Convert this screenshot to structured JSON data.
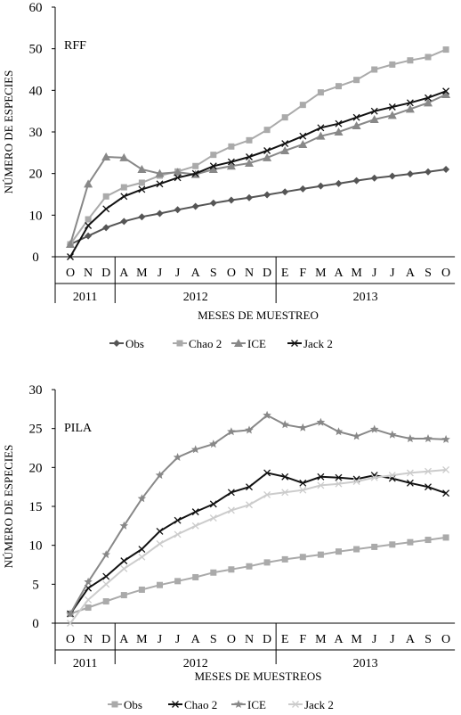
{
  "chart_data": [
    {
      "type": "line",
      "panel_label": "RFF",
      "ylabel": "NÚMERO DE ESPECIES",
      "xlabel": "MESES DE MUESTREO",
      "ylim": [
        0,
        60
      ],
      "yticks": [
        0,
        10,
        20,
        30,
        40,
        50,
        60
      ],
      "categories": [
        "O",
        "N",
        "D",
        "A",
        "M",
        "J",
        "J",
        "A",
        "S",
        "O",
        "N",
        "D",
        "E",
        "F",
        "M",
        "A",
        "M",
        "J",
        "J",
        "A",
        "S",
        "O"
      ],
      "years": [
        "2011",
        "2012",
        "2013"
      ],
      "grid": false,
      "legend_position": "bottom",
      "series": [
        {
          "name": "Obs",
          "color": "#555555",
          "marker": "diamond",
          "values": [
            3,
            5,
            7,
            8.5,
            9.6,
            10.4,
            11.3,
            12.1,
            12.9,
            13.6,
            14.2,
            14.9,
            15.6,
            16.3,
            17,
            17.6,
            18.3,
            18.9,
            19.4,
            19.9,
            20.4,
            21
          ]
        },
        {
          "name": "Chao 2",
          "color": "#aaaaaa",
          "marker": "square",
          "values": [
            3,
            9,
            14.5,
            16.7,
            17.8,
            19.5,
            20.5,
            21.8,
            24.5,
            26.5,
            28,
            30.5,
            33.5,
            36.5,
            39.5,
            41,
            42.5,
            45,
            46.2,
            47.2,
            48,
            49.8
          ]
        },
        {
          "name": "ICE",
          "color": "#888888",
          "marker": "triangle",
          "values": [
            3,
            17.5,
            24,
            23.8,
            21,
            20,
            20.3,
            19.8,
            21,
            21.8,
            22.5,
            23.8,
            25.5,
            27,
            29,
            30,
            31.5,
            33,
            34,
            35.5,
            37,
            39
          ]
        },
        {
          "name": "Jack 2",
          "color": "#111111",
          "marker": "x",
          "values": [
            0,
            7.5,
            11.5,
            14.5,
            16.2,
            17.5,
            19,
            20,
            21.8,
            22.8,
            24,
            25.5,
            27.2,
            29,
            31,
            32,
            33.5,
            35,
            36,
            37,
            38.2,
            39.8
          ]
        }
      ]
    },
    {
      "type": "line",
      "panel_label": "PILA",
      "ylabel": "NÚMERO DE ESPECIES",
      "xlabel": "MESES DE MUESTREOS",
      "ylim": [
        0,
        30
      ],
      "yticks": [
        0,
        5,
        10,
        15,
        20,
        25,
        30
      ],
      "categories": [
        "O",
        "N",
        "D",
        "A",
        "M",
        "J",
        "J",
        "A",
        "S",
        "O",
        "N",
        "D",
        "E",
        "F",
        "M",
        "A",
        "M",
        "J",
        "J",
        "A",
        "S",
        "O"
      ],
      "years": [
        "2011",
        "2012",
        "2013"
      ],
      "grid": false,
      "legend_position": "bottom",
      "series": [
        {
          "name": "Obs",
          "color": "#aaaaaa",
          "marker": "square",
          "values": [
            1.2,
            2,
            2.8,
            3.6,
            4.3,
            4.9,
            5.4,
            5.9,
            6.5,
            6.9,
            7.3,
            7.8,
            8.2,
            8.5,
            8.8,
            9.2,
            9.5,
            9.8,
            10.1,
            10.4,
            10.7,
            11
          ]
        },
        {
          "name": "Chao 2",
          "color": "#111111",
          "marker": "x",
          "values": [
            1.2,
            4.5,
            6,
            8,
            9.5,
            11.8,
            13.2,
            14.3,
            15.3,
            16.8,
            17.5,
            19.3,
            18.8,
            18,
            18.8,
            18.7,
            18.5,
            19,
            18.6,
            18,
            17.5,
            16.7
          ]
        },
        {
          "name": "ICE",
          "color": "#888888",
          "marker": "star",
          "values": [
            1.2,
            5.3,
            8.8,
            12.5,
            16,
            19,
            21.3,
            22.3,
            23,
            24.6,
            24.8,
            26.7,
            25.5,
            25.1,
            25.8,
            24.6,
            24,
            24.9,
            24.2,
            23.7,
            23.7,
            23.6
          ]
        },
        {
          "name": "Jack 2",
          "color": "#cccccc",
          "marker": "x",
          "values": [
            0,
            3,
            5,
            7,
            8.5,
            10.2,
            11.4,
            12.5,
            13.5,
            14.5,
            15.2,
            16.5,
            16.8,
            17.1,
            17.7,
            17.9,
            18.2,
            18.7,
            19,
            19.3,
            19.5,
            19.7
          ]
        }
      ]
    }
  ]
}
